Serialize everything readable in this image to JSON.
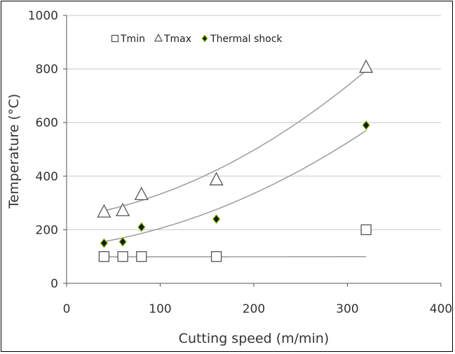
{
  "chart_data": {
    "type": "scatter",
    "title": "",
    "xlabel": "Cutting speed (m/min)",
    "ylabel": "Temperature (°C)",
    "xlim": [
      0,
      400
    ],
    "ylim": [
      0,
      1000
    ],
    "xticks": [
      0,
      100,
      200,
      300,
      400
    ],
    "yticks": [
      0,
      200,
      400,
      600,
      800,
      1000
    ],
    "grid": "horizontal",
    "legend_position": "top",
    "series": [
      {
        "name": "Tmin",
        "marker": "square",
        "color": "#555555",
        "x": [
          40,
          60,
          80,
          160,
          320
        ],
        "y": [
          100,
          100,
          100,
          100,
          200
        ],
        "trend": [
          99.0,
          -0.002,
          1.45e-05
        ]
      },
      {
        "name": "Tmax",
        "marker": "triangle",
        "color": "#555555",
        "x": [
          40,
          60,
          80,
          160,
          320
        ],
        "y": [
          265,
          270,
          330,
          385,
          805
        ],
        "trend": [
          245,
          0.5,
          0.0038
        ]
      },
      {
        "name": "Thermal shock",
        "marker": "diamond",
        "color": "#1a1a1a",
        "accent": "#7ab800",
        "x": [
          40,
          60,
          80,
          160,
          320
        ],
        "y": [
          150,
          155,
          210,
          240,
          590
        ],
        "trend": [
          135,
          0.4,
          0.003
        ]
      }
    ]
  }
}
